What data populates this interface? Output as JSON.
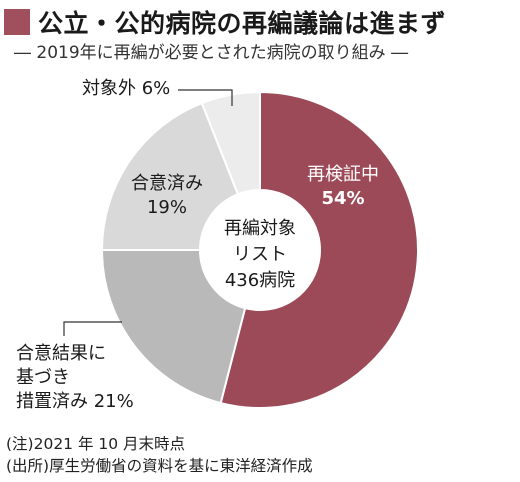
{
  "title": "公立・公的病院の再編議論は進まず",
  "subtitle": "― 2019年に再編が必要とされた病院の取り組み ―",
  "center_label": {
    "line1": "再編対象",
    "line2": "リスト",
    "line3": "436病院"
  },
  "chart_data": {
    "type": "pie",
    "donut": true,
    "categories": [
      "再検証中",
      "合意結果に基づき措置済み",
      "合意済み",
      "対象外"
    ],
    "values": [
      54,
      21,
      19,
      6
    ],
    "unit": "%",
    "colors": [
      "#9c4a58",
      "#b9b9b9",
      "#d9d9d9",
      "#ececec"
    ],
    "center_text": "再編対象リスト436病院"
  },
  "labels": {
    "reexam_name": "再検証中",
    "reexam_value": "54%",
    "agreed_name": "合意済み",
    "agreed_value": "19%",
    "measures_line1": "合意結果に",
    "measures_line2": "基づき",
    "measures_line3": "措置済み 21%",
    "excluded": "対象外 6%"
  },
  "notes": {
    "note1": "(注)2021 年 10 月末時点",
    "note2": "(出所)厚生労働省の資料を基に東洋経済作成"
  }
}
